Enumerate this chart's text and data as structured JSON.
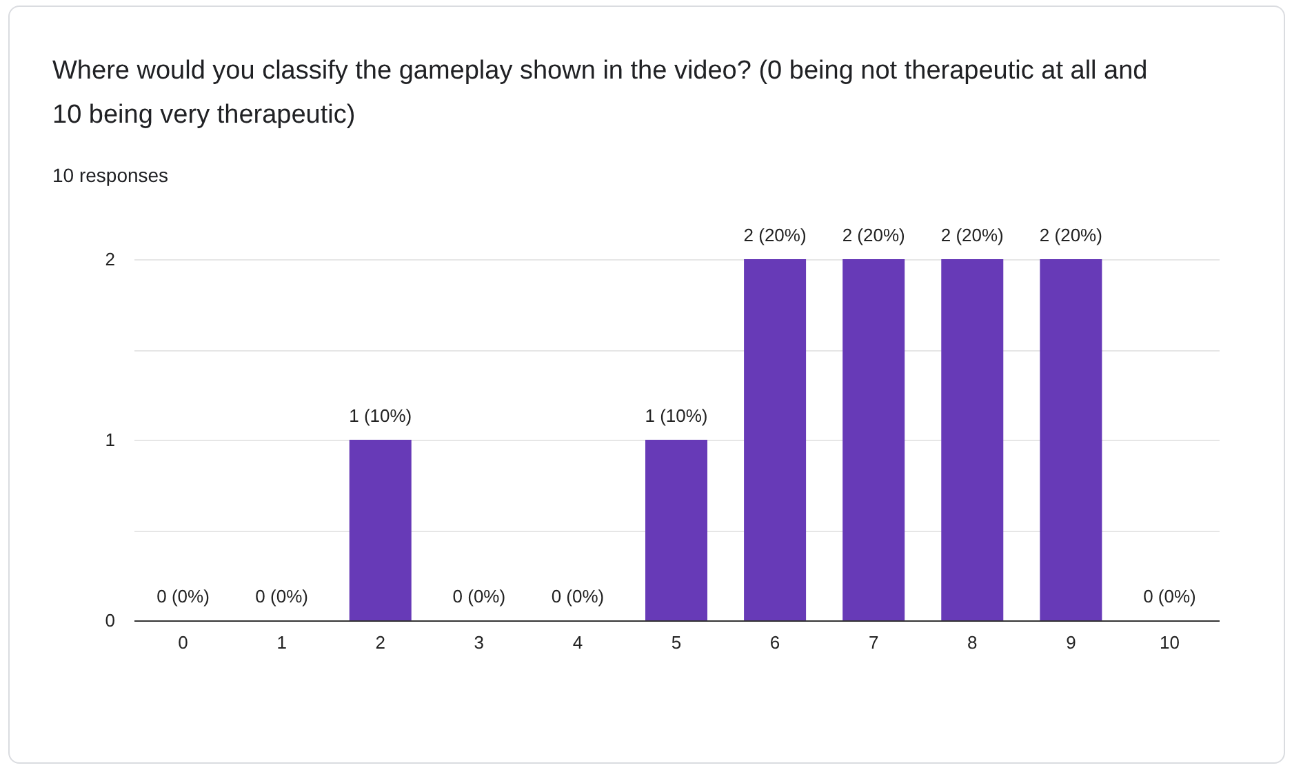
{
  "chart_data": {
    "type": "bar",
    "title": "Where would you classify the gameplay shown in the video? (0 being not therapeutic at all and 10 being very therapeutic)",
    "subtitle": "10 responses",
    "categories": [
      "0",
      "1",
      "2",
      "3",
      "4",
      "5",
      "6",
      "7",
      "8",
      "9",
      "10"
    ],
    "values": [
      0,
      0,
      1,
      0,
      0,
      1,
      2,
      2,
      2,
      2,
      0
    ],
    "value_labels": [
      "0 (0%)",
      "0 (0%)",
      "1 (10%)",
      "0 (0%)",
      "0 (0%)",
      "1 (10%)",
      "2 (20%)",
      "2 (20%)",
      "2 (20%)",
      "2 (20%)",
      "0 (0%)"
    ],
    "color": "#673ab7",
    "ylim": [
      0,
      2
    ],
    "yticks": [
      0,
      {
        "value": 0.5,
        "label": null
      },
      1,
      {
        "value": 1.5,
        "label": null
      },
      2
    ],
    "grid": "y"
  }
}
